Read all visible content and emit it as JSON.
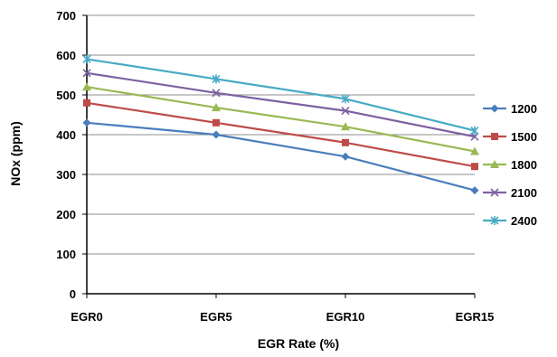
{
  "chart_data": {
    "type": "line",
    "categories": [
      "EGR0",
      "EGR5",
      "EGR10",
      "EGR15"
    ],
    "xlabel": "EGR Rate (%)",
    "ylabel": "NOx (ppm)",
    "ylim": [
      0,
      700
    ],
    "yticks": [
      "0",
      "100",
      "200",
      "300",
      "400",
      "500",
      "600",
      "700"
    ],
    "grid": "horizontal",
    "legend_position": "right",
    "series": [
      {
        "name": "1200",
        "values": [
          430,
          400,
          345,
          260
        ],
        "color": "#4a7ebb",
        "marker": "diamond"
      },
      {
        "name": "1500",
        "values": [
          480,
          430,
          380,
          320
        ],
        "color": "#be4b48",
        "marker": "square"
      },
      {
        "name": "1800",
        "values": [
          520,
          468,
          420,
          358
        ],
        "color": "#98b954",
        "marker": "triangle"
      },
      {
        "name": "2100",
        "values": [
          555,
          505,
          460,
          395
        ],
        "color": "#7d60a0",
        "marker": "x"
      },
      {
        "name": "2400",
        "values": [
          590,
          540,
          490,
          410
        ],
        "color": "#46aac5",
        "marker": "star"
      }
    ]
  }
}
